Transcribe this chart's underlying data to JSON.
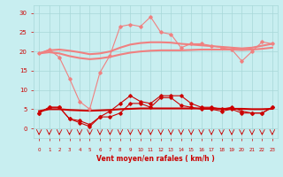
{
  "x": [
    0,
    1,
    2,
    3,
    4,
    5,
    6,
    7,
    8,
    9,
    10,
    11,
    12,
    13,
    14,
    15,
    16,
    17,
    18,
    19,
    20,
    21,
    22,
    23
  ],
  "line_max": [
    19.5,
    20.5,
    18.5,
    13.0,
    7.0,
    5.0,
    14.5,
    19.0,
    26.5,
    27.0,
    26.5,
    29.0,
    25.0,
    24.5,
    21.0,
    22.0,
    22.0,
    21.5,
    21.0,
    20.5,
    17.5,
    20.0,
    22.5,
    22.0
  ],
  "line_max_smooth": [
    19.5,
    20.3,
    20.5,
    20.2,
    19.8,
    19.3,
    19.5,
    20.0,
    21.0,
    21.8,
    22.2,
    22.4,
    22.4,
    22.3,
    22.0,
    21.8,
    21.6,
    21.4,
    21.2,
    21.0,
    20.8,
    21.0,
    21.5,
    22.0
  ],
  "line_mean_smooth": [
    19.5,
    19.8,
    19.5,
    18.8,
    18.3,
    18.0,
    18.2,
    18.6,
    19.2,
    19.7,
    20.0,
    20.2,
    20.3,
    20.3,
    20.3,
    20.4,
    20.5,
    20.5,
    20.5,
    20.5,
    20.4,
    20.5,
    20.7,
    21.0
  ],
  "line_gust": [
    4.0,
    5.5,
    5.5,
    2.5,
    2.0,
    1.0,
    3.0,
    4.5,
    6.5,
    8.5,
    7.0,
    6.5,
    8.5,
    8.5,
    8.5,
    6.5,
    5.5,
    5.5,
    5.0,
    5.5,
    4.5,
    4.0,
    4.0,
    5.5
  ],
  "line_mean": [
    4.0,
    5.5,
    5.5,
    2.5,
    1.5,
    0.5,
    3.0,
    3.0,
    4.0,
    6.5,
    6.5,
    5.5,
    8.0,
    8.0,
    6.0,
    5.5,
    5.0,
    5.0,
    4.5,
    5.0,
    4.0,
    4.0,
    4.0,
    5.5
  ],
  "line_mean_flat": [
    4.5,
    5.0,
    5.0,
    4.8,
    4.7,
    4.6,
    4.7,
    4.8,
    5.0,
    5.1,
    5.2,
    5.2,
    5.2,
    5.2,
    5.2,
    5.2,
    5.2,
    5.2,
    5.1,
    5.1,
    5.1,
    5.0,
    5.0,
    5.1
  ],
  "color_light": "#f08080",
  "color_dark": "#cc0000",
  "bg_color": "#c8eef0",
  "grid_color": "#a8d8d8",
  "xlabel": "Vent moyen/en rafales ( km/h )",
  "ylabel_ticks": [
    0,
    5,
    10,
    15,
    20,
    25,
    30
  ],
  "xticks": [
    0,
    1,
    2,
    3,
    4,
    5,
    6,
    7,
    8,
    9,
    10,
    11,
    12,
    13,
    14,
    15,
    16,
    17,
    18,
    19,
    20,
    21,
    22,
    23
  ],
  "ylim": [
    -2.5,
    32
  ],
  "xlim": [
    -0.5,
    23.5
  ]
}
